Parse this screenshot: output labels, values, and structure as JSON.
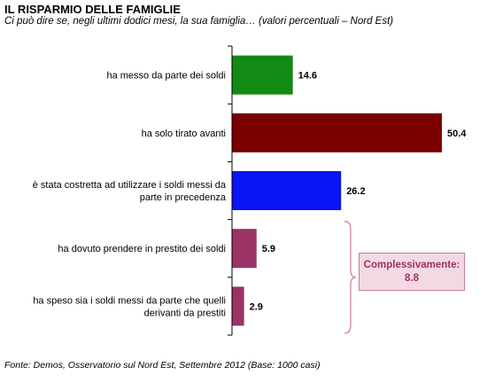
{
  "chart_data": {
    "type": "bar",
    "orientation": "horizontal",
    "title": "IL RISPARMIO DELLE FAMIGLIE",
    "subtitle": "Ci può dire se, negli ultimi dodici mesi, la sua famiglia… (valori percentuali – Nord Est)",
    "categories": [
      [
        "ha messo da parte dei soldi"
      ],
      [
        "ha solo tirato avanti"
      ],
      [
        "è stata costretta ad utilizzare i soldi messi da",
        "parte in precedenza"
      ],
      [
        "ha dovuto prendere in prestito dei soldi"
      ],
      [
        "ha speso sia i soldi messi da parte che quelli",
        "derivanti da prestiti"
      ]
    ],
    "values": [
      14.6,
      50.4,
      26.2,
      5.9,
      2.9
    ],
    "colors": [
      "#138a13",
      "#7a0000",
      "#0a14f5",
      "#993366",
      "#993366"
    ],
    "xlim": [
      0,
      55
    ],
    "grid": false,
    "annotation": {
      "label": "Complessivamente:",
      "value": "8.8",
      "brace_groups": [
        3,
        4
      ],
      "fill": "#f2d9e3",
      "border": "#c9799a",
      "text_color": "#a0325f"
    }
  },
  "source": "Fonte: Demos, Osservatorio sul Nord Est, Settembre 2012 (Base: 1000 casi)"
}
